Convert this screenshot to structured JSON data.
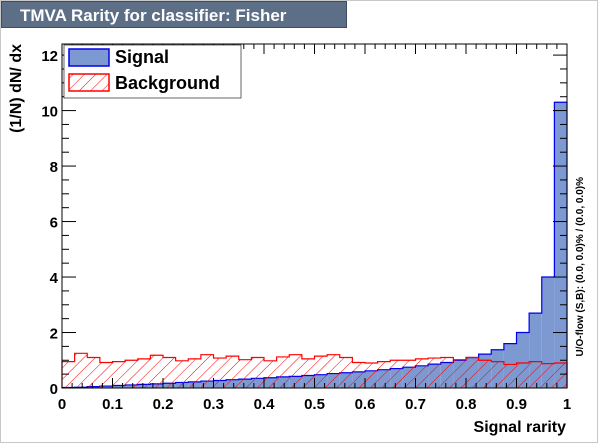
{
  "title": "TMVA Rarity for classifier: Fisher",
  "side_note": "U/O-flow (S,B): (0.0, 0.0)% / (0.0, 0.0)%",
  "colors": {
    "signal_fill": "#7d99d1",
    "signal_line": "#0000ee",
    "background_line": "#ff0000",
    "title_bg": "#5d6f87"
  },
  "chart_data": {
    "type": "histogram",
    "title": "TMVA Rarity for classifier: Fisher",
    "xlabel": "Signal rarity",
    "ylabel": "(1/N) dN/ dx",
    "xlim": [
      0,
      1
    ],
    "ylim": [
      0,
      12.4
    ],
    "x_ticks": [
      "0",
      "0.1",
      "0.2",
      "0.3",
      "0.4",
      "0.5",
      "0.6",
      "0.7",
      "0.8",
      "0.9",
      "1"
    ],
    "y_ticks": [
      "0",
      "2",
      "4",
      "6",
      "8",
      "10",
      "12"
    ],
    "bins": 40,
    "legend": {
      "placement": "top-left",
      "entries": [
        "Signal",
        "Background"
      ]
    },
    "series": [
      {
        "name": "Signal",
        "style": "filled-solid",
        "values": [
          0.02,
          0.03,
          0.05,
          0.07,
          0.09,
          0.11,
          0.13,
          0.15,
          0.17,
          0.2,
          0.22,
          0.25,
          0.27,
          0.3,
          0.32,
          0.35,
          0.37,
          0.4,
          0.42,
          0.45,
          0.48,
          0.52,
          0.55,
          0.58,
          0.62,
          0.66,
          0.7,
          0.75,
          0.8,
          0.86,
          0.92,
          1.0,
          1.1,
          1.22,
          1.38,
          1.6,
          2.0,
          2.7,
          4.0,
          10.3
        ]
      },
      {
        "name": "Background",
        "style": "hatched",
        "values": [
          0.95,
          1.25,
          1.1,
          0.92,
          0.95,
          1.0,
          1.05,
          1.18,
          1.1,
          0.98,
          1.05,
          1.2,
          1.08,
          1.15,
          1.02,
          1.1,
          0.98,
          1.12,
          1.2,
          1.05,
          1.15,
          1.2,
          1.1,
          0.92,
          0.9,
          0.95,
          1.0,
          1.0,
          1.05,
          1.08,
          1.1,
          1.02,
          1.1,
          1.0,
          0.95,
          0.85,
          0.9,
          0.95,
          0.88,
          0.9
        ]
      }
    ]
  }
}
